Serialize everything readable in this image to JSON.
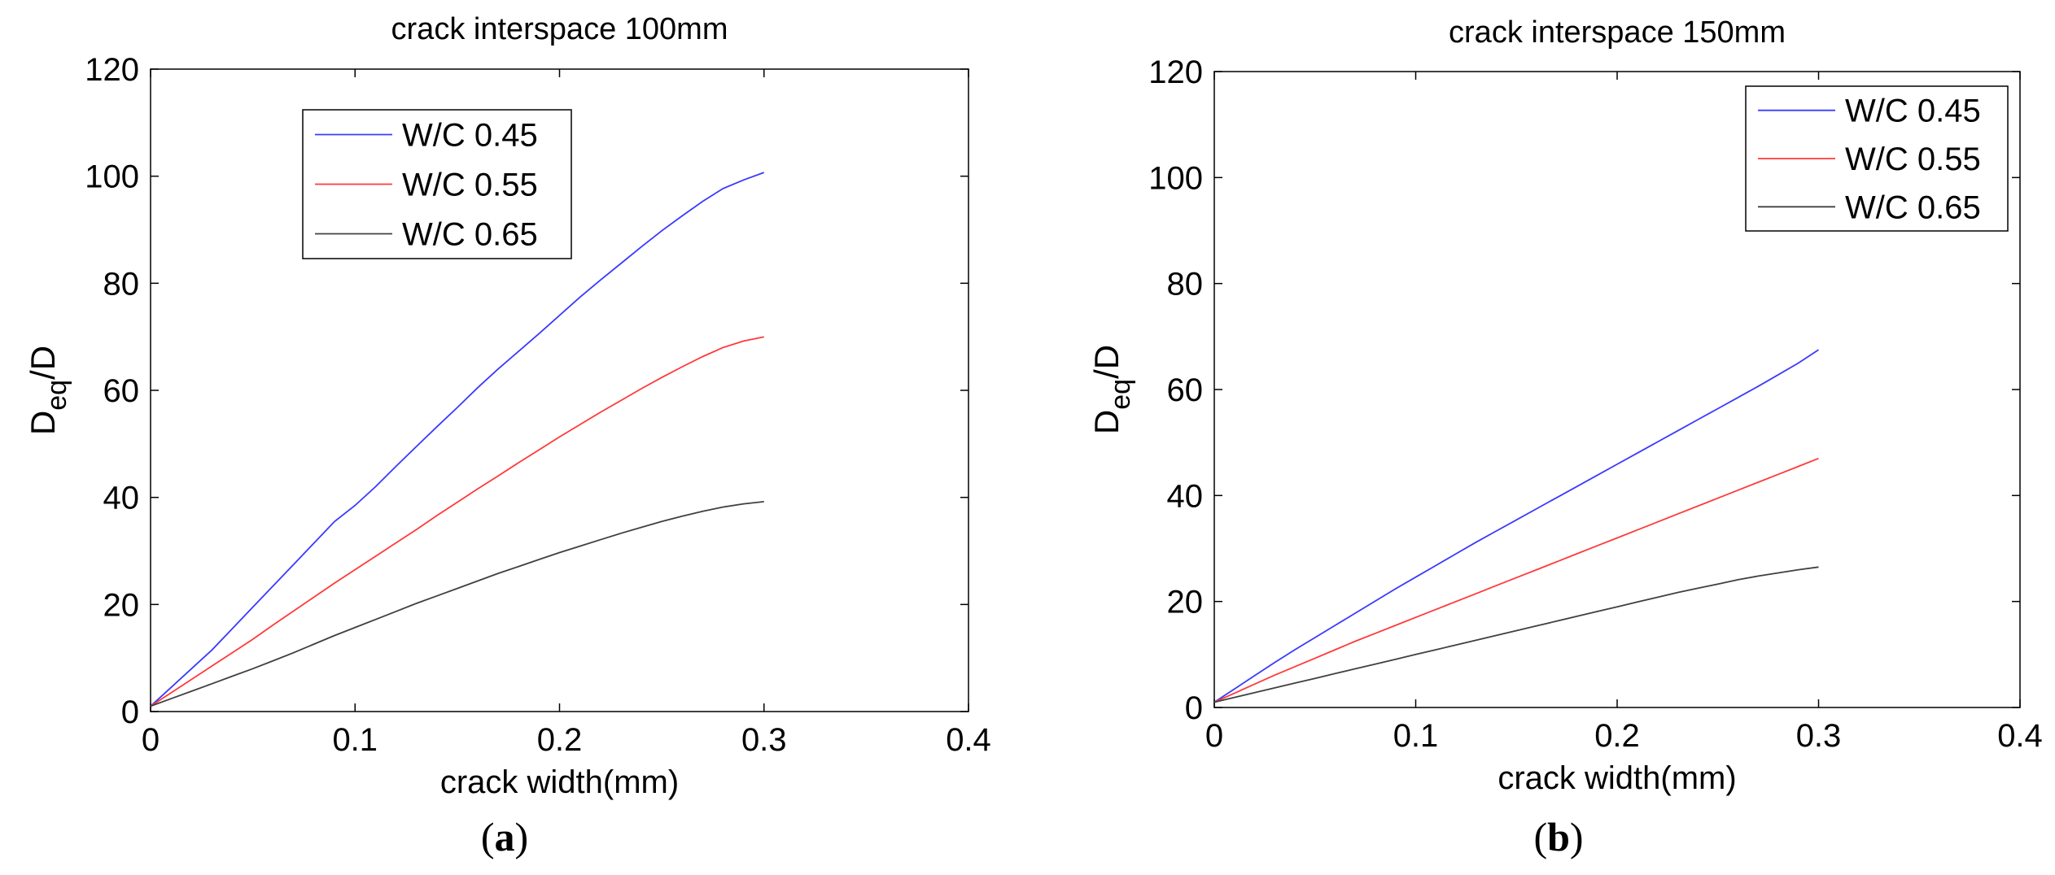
{
  "chart_data": [
    {
      "type": "line",
      "title": "crack interspace 100mm",
      "xlabel": "crack width(mm)",
      "ylabel_main": "D",
      "ylabel_sub": "eq",
      "ylabel_tail": "/D",
      "xlim": [
        0,
        0.4
      ],
      "ylim": [
        0,
        120
      ],
      "xticks": [
        0,
        0.1,
        0.2,
        0.3,
        0.4
      ],
      "xtick_labels": [
        "0",
        "0.1",
        "0.2",
        "0.3",
        "0.4"
      ],
      "yticks": [
        0,
        20,
        40,
        60,
        80,
        100,
        120
      ],
      "ytick_labels": [
        "0",
        "20",
        "40",
        "60",
        "80",
        "100",
        "120"
      ],
      "grid": false,
      "legend_position": "top-center",
      "x": [
        0,
        0.01,
        0.02,
        0.03,
        0.04,
        0.05,
        0.06,
        0.07,
        0.08,
        0.09,
        0.1,
        0.11,
        0.12,
        0.13,
        0.14,
        0.15,
        0.16,
        0.17,
        0.18,
        0.19,
        0.2,
        0.21,
        0.22,
        0.23,
        0.24,
        0.25,
        0.26,
        0.27,
        0.28,
        0.29,
        0.3
      ],
      "series": [
        {
          "name": "W/C 0.45",
          "color": "#3a3aff",
          "values": [
            1,
            4.5,
            8,
            11.5,
            15.5,
            19.5,
            23.5,
            27.5,
            31.5,
            35.5,
            38.5,
            42,
            45.8,
            49.5,
            53.2,
            56.8,
            60.5,
            64,
            67.3,
            70.6,
            74,
            77.4,
            80.6,
            83.7,
            86.8,
            89.8,
            92.6,
            95.3,
            97.7,
            99.3,
            100.7
          ]
        },
        {
          "name": "W/C 0.55",
          "color": "#ff3a3a",
          "values": [
            1,
            3.5,
            6,
            8.5,
            11,
            13.5,
            16.2,
            18.8,
            21.4,
            24,
            26.5,
            29,
            31.5,
            34,
            36.6,
            39.1,
            41.6,
            44,
            46.5,
            48.9,
            51.3,
            53.6,
            55.9,
            58.1,
            60.3,
            62.4,
            64.4,
            66.3,
            68,
            69.2,
            70
          ]
        },
        {
          "name": "W/C 0.65",
          "color": "#404040",
          "values": [
            1,
            2.4,
            3.8,
            5.2,
            6.6,
            8,
            9.5,
            11,
            12.6,
            14.2,
            15.7,
            17.2,
            18.7,
            20.2,
            21.6,
            23,
            24.4,
            25.8,
            27.1,
            28.4,
            29.7,
            30.9,
            32.1,
            33.3,
            34.4,
            35.5,
            36.5,
            37.4,
            38.2,
            38.8,
            39.2
          ]
        }
      ]
    },
    {
      "type": "line",
      "title": "crack interspace 150mm",
      "xlabel": "crack width(mm)",
      "ylabel_main": "D",
      "ylabel_sub": "eq",
      "ylabel_tail": "/D",
      "xlim": [
        0,
        0.4
      ],
      "ylim": [
        0,
        120
      ],
      "xticks": [
        0,
        0.1,
        0.2,
        0.3,
        0.4
      ],
      "xtick_labels": [
        "0",
        "0.1",
        "0.2",
        "0.3",
        "0.4"
      ],
      "yticks": [
        0,
        20,
        40,
        60,
        80,
        100,
        120
      ],
      "ytick_labels": [
        "0",
        "20",
        "40",
        "60",
        "80",
        "100",
        "120"
      ],
      "grid": false,
      "legend_position": "top-right",
      "x": [
        0,
        0.01,
        0.02,
        0.03,
        0.04,
        0.05,
        0.06,
        0.07,
        0.08,
        0.09,
        0.1,
        0.11,
        0.12,
        0.13,
        0.14,
        0.15,
        0.16,
        0.17,
        0.18,
        0.19,
        0.2,
        0.21,
        0.22,
        0.23,
        0.24,
        0.25,
        0.26,
        0.27,
        0.28,
        0.29,
        0.3
      ],
      "series": [
        {
          "name": "W/C 0.45",
          "color": "#3a3aff",
          "values": [
            1,
            3.5,
            6,
            8.5,
            10.9,
            13.2,
            15.5,
            17.8,
            20.1,
            22.4,
            24.6,
            26.8,
            29,
            31.2,
            33.3,
            35.4,
            37.5,
            39.6,
            41.7,
            43.8,
            45.9,
            48,
            50.1,
            52.2,
            54.3,
            56.4,
            58.5,
            60.6,
            62.8,
            65,
            67.5
          ]
        },
        {
          "name": "W/C 0.55",
          "color": "#ff3a3a",
          "values": [
            1,
            2.7,
            4.4,
            6.1,
            7.7,
            9.3,
            10.9,
            12.5,
            14,
            15.5,
            17,
            18.5,
            20,
            21.5,
            23,
            24.5,
            26,
            27.5,
            29,
            30.5,
            32,
            33.5,
            35,
            36.5,
            38,
            39.5,
            41,
            42.5,
            44,
            45.5,
            47
          ]
        },
        {
          "name": "W/C 0.65",
          "color": "#404040",
          "values": [
            1,
            1.9,
            2.8,
            3.7,
            4.6,
            5.5,
            6.4,
            7.3,
            8.2,
            9.1,
            10,
            10.9,
            11.8,
            12.7,
            13.6,
            14.5,
            15.4,
            16.3,
            17.2,
            18.1,
            19,
            19.9,
            20.8,
            21.7,
            22.5,
            23.3,
            24.1,
            24.8,
            25.4,
            26,
            26.5
          ]
        }
      ]
    }
  ],
  "captions": [
    {
      "open": "(",
      "letter": "a",
      "close": ")"
    },
    {
      "open": "(",
      "letter": "b",
      "close": ")"
    }
  ]
}
